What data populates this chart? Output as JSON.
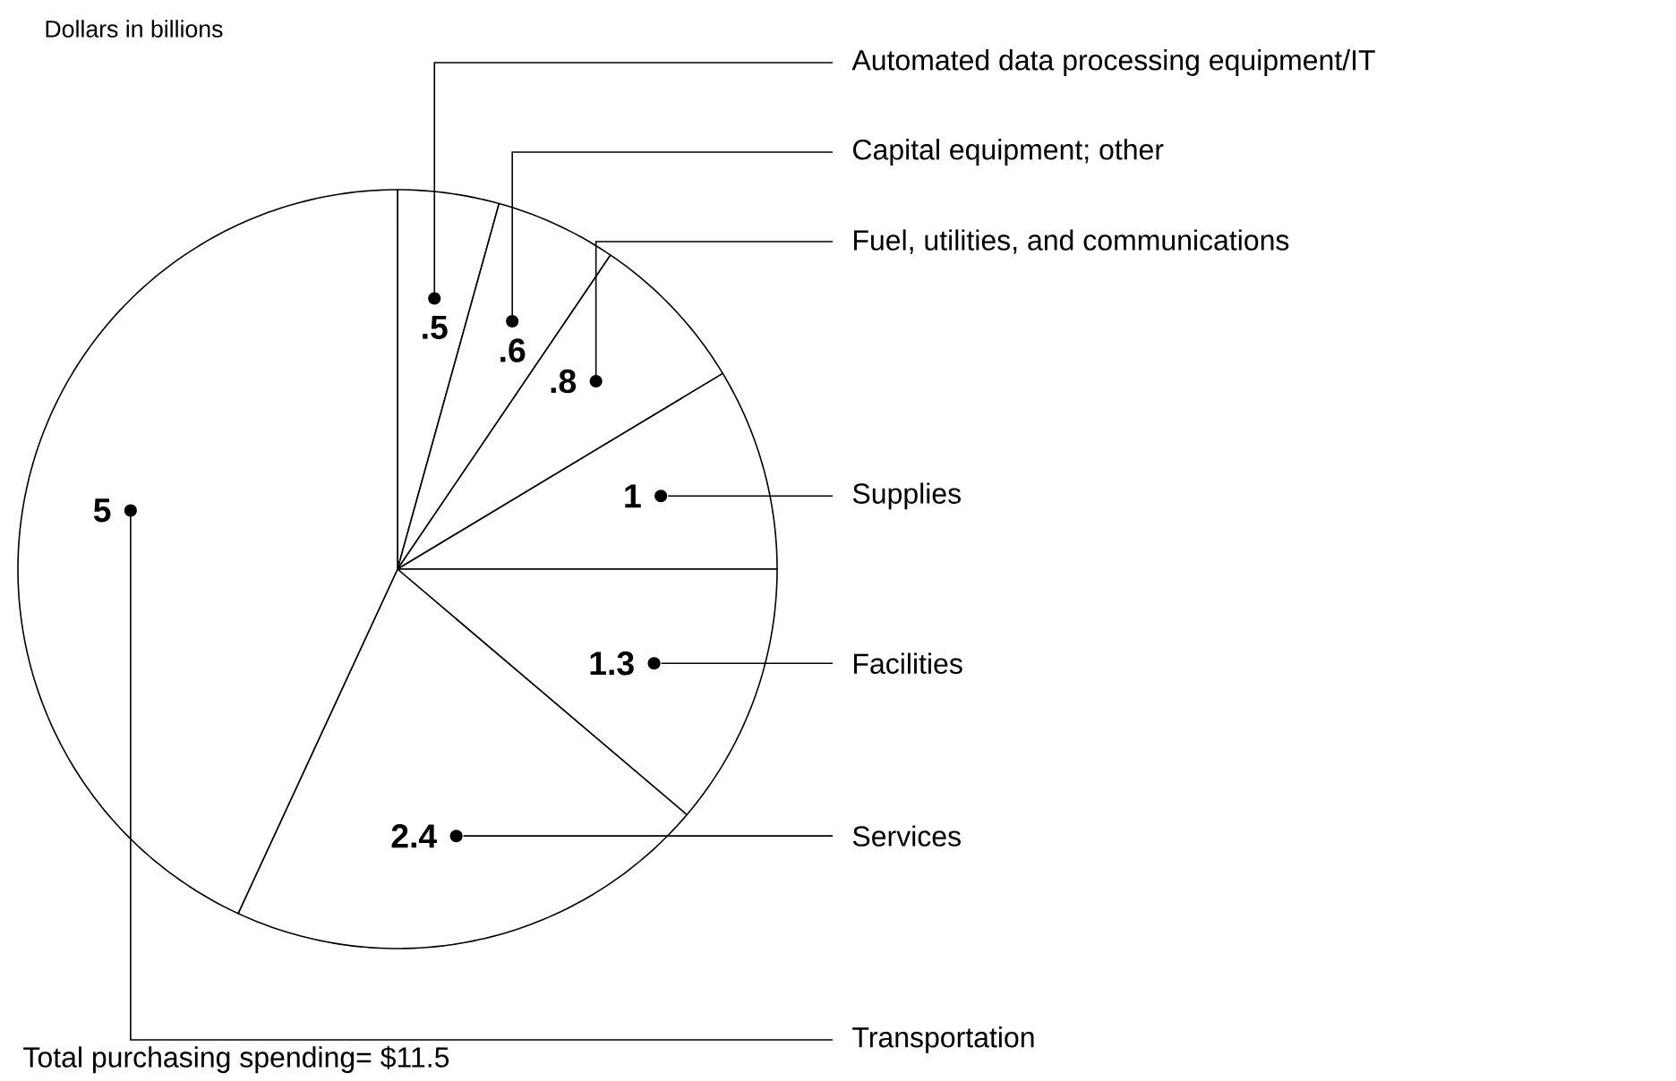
{
  "chart_data": {
    "type": "pie",
    "title": "Dollars in billions",
    "categories": [
      "Automated data processing equipment/IT",
      "Capital equipment; other",
      "Fuel, utilities, and communications",
      "Supplies",
      "Facilities",
      "Services",
      "Transportation"
    ],
    "values": [
      0.5,
      0.6,
      0.8,
      1,
      1.3,
      2.4,
      5
    ],
    "value_labels": [
      ".5",
      ".6",
      ".8",
      "1",
      "1.3",
      "2.4",
      "5"
    ],
    "colors": [
      "#ffffff",
      "#ffffff",
      "#ffffff",
      "#ffffff",
      "#ffffff",
      "#ffffff",
      "#ffffff"
    ],
    "legend": false,
    "annotations": [
      "Total purchasing spending= $11.5"
    ]
  }
}
